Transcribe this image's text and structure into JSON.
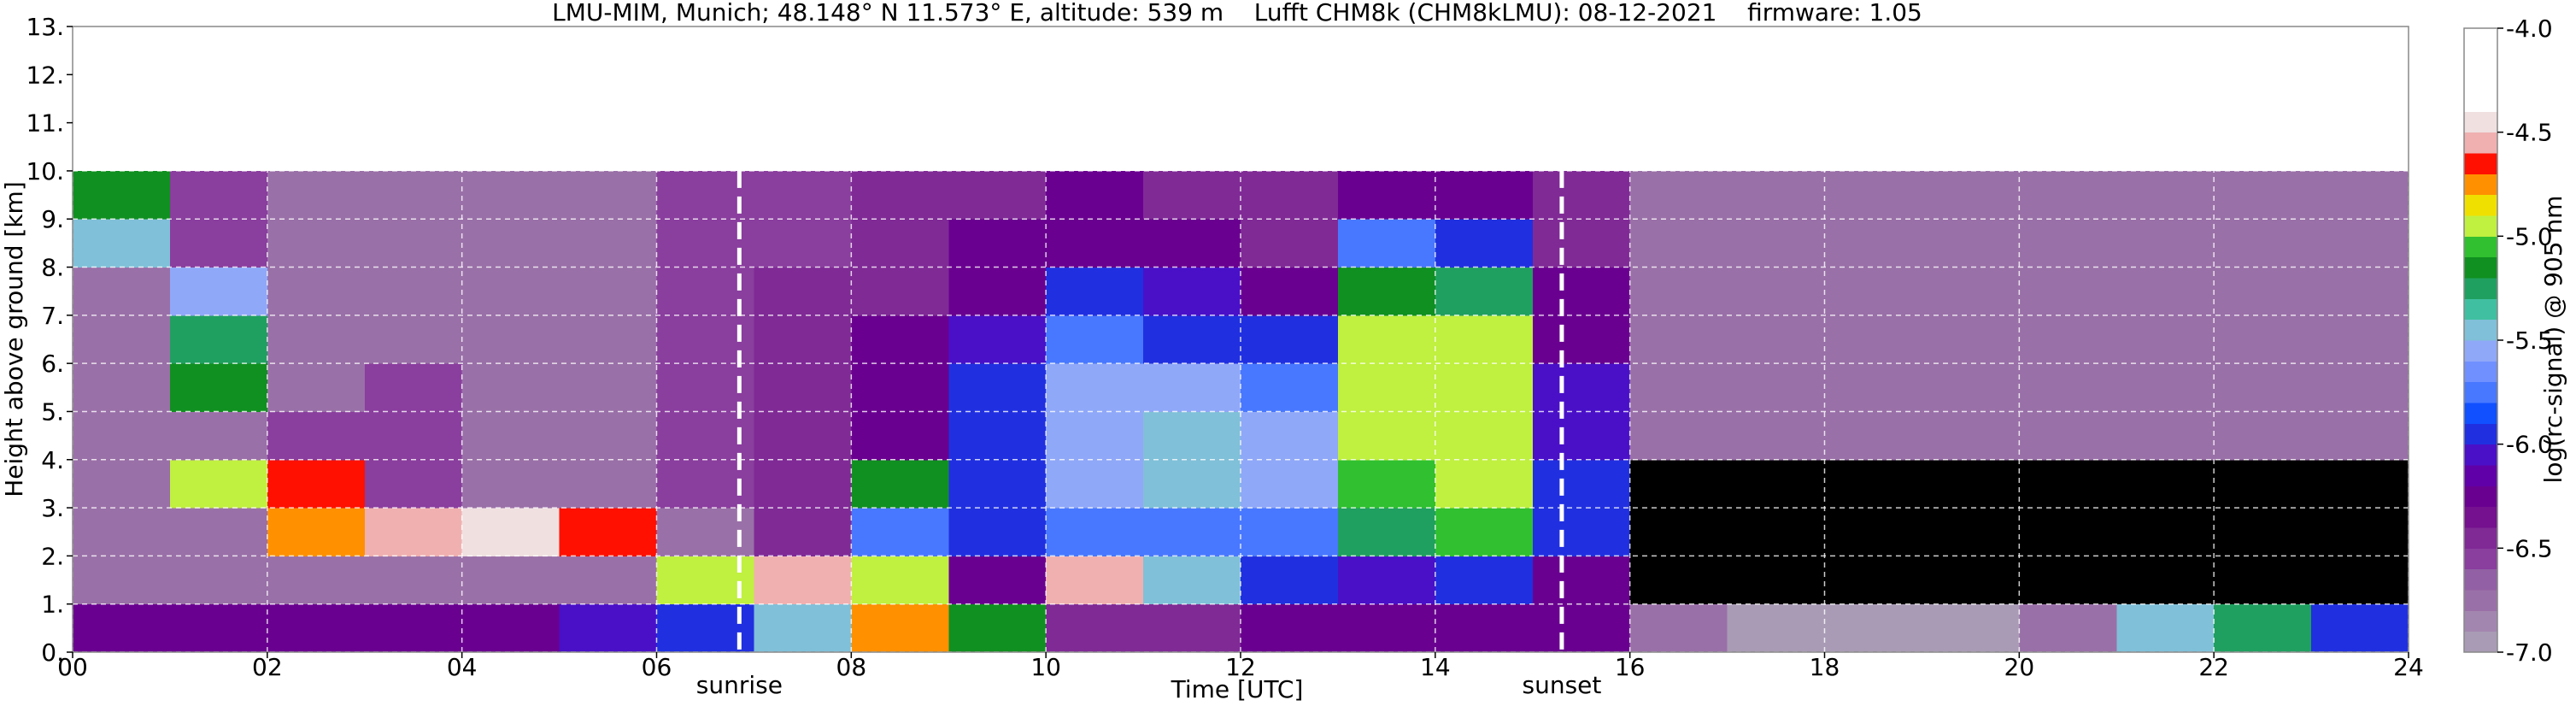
{
  "chart_data": {
    "type": "heatmap",
    "title": "LMU-MIM, Munich; 48.148° N 11.573° E, altitude: 539 m    Lufft CHM8k (CHM8kLMU): 08-12-2021    firmware: 1.05",
    "xlabel": "Time [UTC]",
    "ylabel": "Height above ground [km]",
    "xlim": [
      0,
      24
    ],
    "ylim": [
      0,
      13
    ],
    "xticks": [
      {
        "value": 0,
        "label": "00"
      },
      {
        "value": 2,
        "label": "02"
      },
      {
        "value": 4,
        "label": "04"
      },
      {
        "value": 6,
        "label": "06"
      },
      {
        "value": 8,
        "label": "08"
      },
      10,
      12,
      14,
      16,
      18,
      20,
      22,
      24
    ],
    "yticks": [
      {
        "value": 0,
        "label": "0."
      },
      {
        "value": 1,
        "label": "1."
      },
      {
        "value": 2,
        "label": "2."
      },
      {
        "value": 3,
        "label": "3."
      },
      {
        "value": 4,
        "label": "4."
      },
      {
        "value": 5,
        "label": "5."
      },
      {
        "value": 6,
        "label": "6."
      },
      {
        "value": 7,
        "label": "7."
      },
      {
        "value": 8,
        "label": "8."
      },
      {
        "value": 9,
        "label": "9."
      },
      {
        "value": 10,
        "label": "10."
      },
      {
        "value": 11,
        "label": "11."
      },
      {
        "value": 12,
        "label": "12."
      },
      {
        "value": 13,
        "label": "13."
      }
    ],
    "grid": true,
    "annotations": [
      {
        "text": "sunrise",
        "x": 6.85
      },
      {
        "text": "sunset",
        "x": 15.3
      }
    ],
    "x_edges": [
      0,
      1,
      2,
      3,
      4,
      5,
      6,
      7,
      8,
      9,
      10,
      11,
      12,
      13,
      14,
      15,
      16,
      17,
      18,
      19,
      20,
      21,
      22,
      23,
      24
    ],
    "y_edges": [
      0,
      1,
      2,
      3,
      4,
      5,
      6,
      7,
      8,
      9,
      10
    ],
    "z": [
      [
        -6.3,
        -6.3,
        -6.3,
        -6.2,
        -6.2,
        -6.1,
        -6.0,
        -5.5,
        -4.8,
        -5.2,
        -6.5,
        -6.4,
        -6.3,
        -6.2,
        -6.2,
        -6.3,
        -6.8,
        -6.9,
        -7.0,
        -7.0,
        -6.8,
        -5.5,
        -5.3,
        -6.0
      ],
      [
        -6.8,
        -6.8,
        -6.8,
        -6.8,
        -6.8,
        -6.7,
        -5.0,
        -4.6,
        -5.0,
        -6.3,
        -4.6,
        -5.5,
        -6.0,
        -6.1,
        -5.9,
        -6.2,
        -7.3,
        -7.3,
        -7.3,
        -7.3,
        -7.3,
        -7.2,
        -7.2,
        -7.3
      ],
      [
        -6.8,
        -6.8,
        -4.8,
        -4.6,
        -4.5,
        -4.7,
        -6.7,
        -6.5,
        -5.8,
        -6.0,
        -5.7,
        -5.7,
        -5.8,
        -5.3,
        -5.1,
        -5.9,
        -7.3,
        -7.3,
        -7.3,
        -7.3,
        -7.3,
        -7.3,
        -7.3,
        -7.3
      ],
      [
        -6.7,
        -5.0,
        -4.7,
        -6.6,
        -6.7,
        -6.7,
        -6.6,
        -6.4,
        -5.2,
        -6.0,
        -5.6,
        -5.5,
        -5.6,
        -5.1,
        -5.0,
        -6.0,
        -7.2,
        -7.2,
        -7.2,
        -7.2,
        -7.2,
        -7.2,
        -7.2,
        -7.2
      ],
      [
        -6.7,
        -6.7,
        -6.6,
        -6.6,
        -6.7,
        -6.7,
        -6.6,
        -6.4,
        -6.2,
        -6.0,
        -5.6,
        -5.4,
        -5.6,
        -5.0,
        -4.9,
        -6.1,
        -6.8,
        -6.8,
        -6.8,
        -6.8,
        -6.8,
        -6.8,
        -6.8,
        -6.8
      ],
      [
        -6.7,
        -5.2,
        -6.7,
        -6.6,
        -6.7,
        -6.7,
        -6.6,
        -6.4,
        -6.2,
        -6.0,
        -5.6,
        -5.6,
        -5.8,
        -5.0,
        -4.9,
        -6.1,
        -6.7,
        -6.7,
        -6.7,
        -6.7,
        -6.7,
        -6.7,
        -6.7,
        -6.7
      ],
      [
        -6.7,
        -5.3,
        -6.7,
        -6.7,
        -6.7,
        -6.7,
        -6.6,
        -6.5,
        -6.3,
        -6.1,
        -5.8,
        -5.9,
        -6.0,
        -5.0,
        -5.0,
        -6.2,
        -6.7,
        -6.7,
        -6.7,
        -6.7,
        -6.7,
        -6.7,
        -6.7,
        -6.7
      ],
      [
        -6.7,
        -5.6,
        -6.7,
        -6.7,
        -6.7,
        -6.7,
        -6.6,
        -6.5,
        -6.4,
        -6.2,
        -6.0,
        -6.1,
        -6.2,
        -5.2,
        -5.3,
        -6.3,
        -6.7,
        -6.7,
        -6.7,
        -6.7,
        -6.7,
        -6.7,
        -6.7,
        -6.7
      ],
      [
        -5.5,
        -6.6,
        -6.7,
        -6.7,
        -6.7,
        -6.7,
        -6.6,
        -6.6,
        -6.5,
        -6.3,
        -6.2,
        -6.3,
        -6.4,
        -5.8,
        -5.9,
        -6.4,
        -6.7,
        -6.7,
        -6.7,
        -6.7,
        -6.7,
        -6.7,
        -6.7,
        -6.7
      ],
      [
        -5.2,
        -6.6,
        -6.7,
        -6.7,
        -6.7,
        -6.7,
        -6.6,
        -6.6,
        -6.5,
        -6.4,
        -6.3,
        -6.4,
        -6.5,
        -6.2,
        -6.2,
        -6.5,
        -6.7,
        -6.7,
        -6.7,
        -6.7,
        -6.7,
        -6.7,
        -6.7,
        -6.7
      ]
    ],
    "colorbar": {
      "label": "log(rc-signal) @ 905 nm",
      "clim": [
        -7,
        -4
      ],
      "ticks": [
        {
          "value": -7,
          "label": "-7.0"
        },
        -6.5,
        {
          "value": -6,
          "label": "-6.0"
        },
        -5.5,
        {
          "value": -5,
          "label": "-5.0"
        },
        -4.5,
        {
          "value": -4,
          "label": "-4.0"
        }
      ],
      "colors": [
        "#a99bb5",
        "#a386b0",
        "#9a70a8",
        "#9260a4",
        "#8a3e9e",
        "#802a96",
        "#75108e",
        "#6a0090",
        "#6000a8",
        "#4a10c8",
        "#2030e0",
        "#1050ff",
        "#4878ff",
        "#7090ff",
        "#90a8f8",
        "#80c0d8",
        "#40c0a0",
        "#20a060",
        "#109020",
        "#30c030",
        "#c0f040",
        "#f0e000",
        "#ff9000",
        "#ff1000",
        "#f0b0b0",
        "#f0e0e0",
        "#ffffff",
        "#ffffff",
        "#ffffff",
        "#ffffff"
      ],
      "under_color": "#000000"
    }
  }
}
